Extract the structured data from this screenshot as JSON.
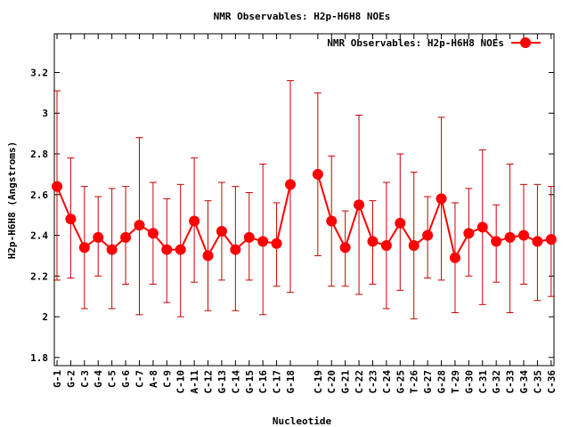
{
  "chart_data": {
    "type": "line",
    "title": "NMR Observables: H2p-H6H8 NOEs",
    "xlabel": "Nucleotide",
    "ylabel": "H2p-H6H8 (Angstroms)",
    "ylim": [
      1.76,
      3.39
    ],
    "yticks": [
      1.8,
      2,
      2.2,
      2.4,
      2.6,
      2.8,
      3,
      3.2
    ],
    "ytick_labels": [
      "1.8",
      "2",
      "2.2",
      "2.4",
      "2.6",
      "2.8",
      "3",
      "3.2"
    ],
    "grid": false,
    "legend_position": "top-right",
    "colors": {
      "series": "#ff0000",
      "errorbar": "#cc0000",
      "axis": "#000000"
    },
    "categories": [
      "G-1",
      "G-2",
      "C-3",
      "G-4",
      "C-5",
      "G-6",
      "C-7",
      "A-8",
      "C-9",
      "C-10",
      "A-11",
      "C-12",
      "G-13",
      "C-14",
      "G-15",
      "C-16",
      "C-17",
      "G-18",
      "",
      "C-19",
      "C-20",
      "G-21",
      "C-22",
      "C-23",
      "C-24",
      "G-25",
      "T-26",
      "G-27",
      "G-28",
      "T-29",
      "G-30",
      "C-31",
      "G-32",
      "C-33",
      "G-34",
      "C-35",
      "C-36"
    ],
    "series": [
      {
        "name": "NMR Observables: H2p-H6H8 NOEs",
        "values": [
          2.64,
          2.48,
          2.34,
          2.39,
          2.33,
          2.39,
          2.45,
          2.41,
          2.33,
          2.33,
          2.47,
          2.3,
          2.42,
          2.33,
          2.39,
          2.37,
          2.36,
          2.65,
          null,
          2.7,
          2.47,
          2.34,
          2.55,
          2.37,
          2.35,
          2.46,
          2.35,
          2.4,
          2.58,
          2.29,
          2.41,
          2.44,
          2.37,
          2.39,
          2.4,
          2.37,
          2.38
        ],
        "err_low": [
          2.18,
          2.19,
          2.04,
          2.2,
          2.04,
          2.16,
          2.01,
          2.16,
          2.07,
          2.0,
          2.17,
          2.03,
          2.18,
          2.03,
          2.18,
          2.01,
          2.15,
          2.12,
          null,
          2.3,
          2.15,
          2.15,
          2.11,
          2.16,
          2.04,
          2.13,
          1.99,
          2.19,
          2.18,
          2.02,
          2.2,
          2.06,
          2.17,
          2.02,
          2.16,
          2.08,
          2.1
        ],
        "err_high": [
          3.11,
          2.78,
          2.64,
          2.59,
          2.63,
          2.64,
          2.88,
          2.66,
          2.58,
          2.65,
          2.78,
          2.57,
          2.66,
          2.64,
          2.61,
          2.75,
          2.56,
          3.16,
          null,
          3.1,
          2.79,
          2.52,
          2.99,
          2.57,
          2.66,
          2.8,
          2.71,
          2.59,
          2.98,
          2.56,
          2.63,
          2.82,
          2.55,
          2.75,
          2.65,
          2.65,
          2.64
        ]
      }
    ]
  }
}
